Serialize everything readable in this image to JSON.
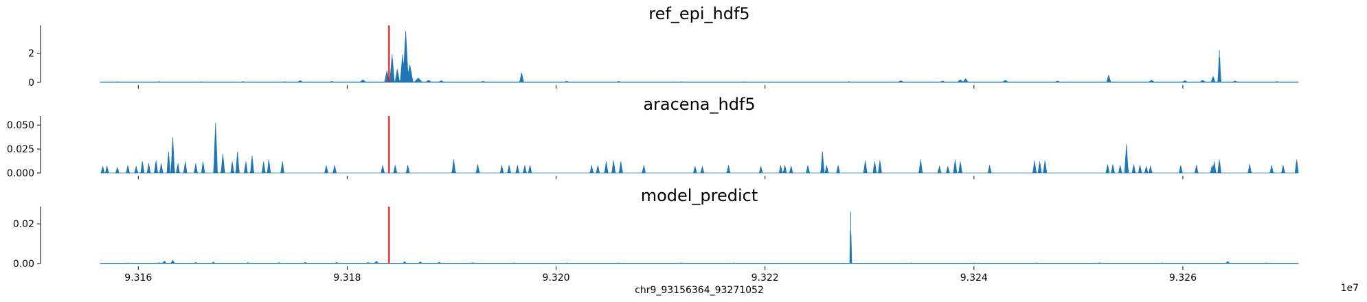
{
  "colors": {
    "fill": "#1f77b4",
    "marker": "#ff0000"
  },
  "chart_data": {
    "type": "area",
    "xlabel": "chr9_93156364_93271052",
    "x_offset_label": "1e7",
    "xlim": [
      93156364,
      93271052
    ],
    "x_ticks": [
      93160000,
      93180000,
      93200000,
      93220000,
      93240000,
      93260000
    ],
    "x_tick_labels": [
      "9.316",
      "9.318",
      "9.320",
      "9.322",
      "9.324",
      "9.326"
    ],
    "marker_x": 93184000,
    "tracks": [
      {
        "title": "ref_epi_hdf5",
        "ylim": [
          0,
          3.8
        ],
        "y_ticks": [
          0,
          2
        ],
        "y_tick_labels": [
          "0",
          "2"
        ],
        "baseline": 0.03,
        "peaks": [
          [
            93158000,
            0.05,
            300
          ],
          [
            93162000,
            0.06,
            300
          ],
          [
            93166000,
            0.05,
            300
          ],
          [
            93170000,
            0.06,
            300
          ],
          [
            93174000,
            0.05,
            300
          ],
          [
            93175500,
            0.12,
            300
          ],
          [
            93178500,
            0.07,
            300
          ],
          [
            93181500,
            0.18,
            300
          ],
          [
            93183800,
            0.8,
            220
          ],
          [
            93184300,
            1.9,
            220
          ],
          [
            93184800,
            0.9,
            220
          ],
          [
            93185300,
            1.9,
            220
          ],
          [
            93185600,
            3.5,
            260
          ],
          [
            93186000,
            1.2,
            300
          ],
          [
            93186800,
            0.3,
            400
          ],
          [
            93187800,
            0.15,
            300
          ],
          [
            93189000,
            0.12,
            300
          ],
          [
            93193000,
            0.08,
            300
          ],
          [
            93196700,
            0.65,
            200
          ],
          [
            93201000,
            0.08,
            300
          ],
          [
            93206000,
            0.07,
            300
          ],
          [
            93212000,
            0.05,
            300
          ],
          [
            93218000,
            0.05,
            300
          ],
          [
            93228000,
            0.06,
            300
          ],
          [
            93233000,
            0.12,
            300
          ],
          [
            93237000,
            0.1,
            300
          ],
          [
            93238700,
            0.18,
            300
          ],
          [
            93239200,
            0.25,
            250
          ],
          [
            93243000,
            0.15,
            300
          ],
          [
            93248000,
            0.1,
            300
          ],
          [
            93252900,
            0.5,
            200
          ],
          [
            93257000,
            0.15,
            300
          ],
          [
            93260200,
            0.12,
            300
          ],
          [
            93261900,
            0.15,
            300
          ],
          [
            93262900,
            0.4,
            200
          ],
          [
            93263500,
            2.2,
            140
          ],
          [
            93265000,
            0.1,
            300
          ],
          [
            93269000,
            0.06,
            300
          ]
        ]
      },
      {
        "title": "aracena_hdf5",
        "ylim": [
          0,
          0.058
        ],
        "y_ticks": [
          0,
          0.025,
          0.05
        ],
        "y_tick_labels": [
          "0.000",
          "0.025",
          "0.050"
        ],
        "baseline": 0,
        "peaks": [
          [
            93156600,
            0.007,
            150
          ],
          [
            93157000,
            0.007,
            150
          ],
          [
            93158000,
            0.006,
            150
          ],
          [
            93159000,
            0.008,
            150
          ],
          [
            93159800,
            0.007,
            150
          ],
          [
            93160400,
            0.012,
            160
          ],
          [
            93161000,
            0.01,
            150
          ],
          [
            93161700,
            0.013,
            160
          ],
          [
            93162200,
            0.01,
            150
          ],
          [
            93162900,
            0.022,
            160
          ],
          [
            93163300,
            0.037,
            170
          ],
          [
            93163800,
            0.01,
            150
          ],
          [
            93164500,
            0.012,
            150
          ],
          [
            93165500,
            0.01,
            150
          ],
          [
            93166200,
            0.012,
            150
          ],
          [
            93167400,
            0.052,
            180
          ],
          [
            93168100,
            0.02,
            170
          ],
          [
            93169000,
            0.012,
            150
          ],
          [
            93169500,
            0.022,
            160
          ],
          [
            93170300,
            0.012,
            150
          ],
          [
            93170900,
            0.018,
            160
          ],
          [
            93172000,
            0.012,
            150
          ],
          [
            93172500,
            0.014,
            150
          ],
          [
            93173800,
            0.012,
            150
          ],
          [
            93178000,
            0.008,
            150
          ],
          [
            93178800,
            0.008,
            150
          ],
          [
            93183400,
            0.008,
            150
          ],
          [
            93184600,
            0.008,
            150
          ],
          [
            93185800,
            0.008,
            150
          ],
          [
            93190200,
            0.014,
            160
          ],
          [
            93192500,
            0.009,
            150
          ],
          [
            93194800,
            0.008,
            150
          ],
          [
            93195500,
            0.008,
            150
          ],
          [
            93196300,
            0.008,
            150
          ],
          [
            93197000,
            0.008,
            150
          ],
          [
            93197500,
            0.008,
            150
          ],
          [
            93203400,
            0.008,
            150
          ],
          [
            93204000,
            0.008,
            150
          ],
          [
            93204800,
            0.012,
            160
          ],
          [
            93205500,
            0.013,
            160
          ],
          [
            93206200,
            0.012,
            160
          ],
          [
            93208400,
            0.008,
            150
          ],
          [
            93213300,
            0.007,
            150
          ],
          [
            93214000,
            0.007,
            150
          ],
          [
            93216500,
            0.008,
            150
          ],
          [
            93219600,
            0.007,
            150
          ],
          [
            93221500,
            0.008,
            150
          ],
          [
            93221900,
            0.008,
            150
          ],
          [
            93222500,
            0.007,
            150
          ],
          [
            93224100,
            0.008,
            150
          ],
          [
            93225500,
            0.022,
            160
          ],
          [
            93225900,
            0.008,
            150
          ],
          [
            93227000,
            0.008,
            150
          ],
          [
            93229600,
            0.013,
            160
          ],
          [
            93230500,
            0.012,
            160
          ],
          [
            93231000,
            0.013,
            160
          ],
          [
            93234900,
            0.014,
            160
          ],
          [
            93236700,
            0.007,
            150
          ],
          [
            93237500,
            0.007,
            150
          ],
          [
            93238200,
            0.014,
            160
          ],
          [
            93238700,
            0.012,
            160
          ],
          [
            93241500,
            0.008,
            150
          ],
          [
            93245800,
            0.013,
            160
          ],
          [
            93246300,
            0.012,
            160
          ],
          [
            93246800,
            0.013,
            160
          ],
          [
            93252800,
            0.009,
            150
          ],
          [
            93253300,
            0.009,
            150
          ],
          [
            93254000,
            0.008,
            150
          ],
          [
            93254600,
            0.03,
            170
          ],
          [
            93255300,
            0.009,
            150
          ],
          [
            93255900,
            0.008,
            150
          ],
          [
            93256500,
            0.007,
            150
          ],
          [
            93256900,
            0.007,
            150
          ],
          [
            93259800,
            0.008,
            150
          ],
          [
            93261300,
            0.008,
            150
          ],
          [
            93262800,
            0.008,
            150
          ],
          [
            93263000,
            0.012,
            160
          ],
          [
            93263500,
            0.014,
            160
          ],
          [
            93266400,
            0.009,
            150
          ],
          [
            93268500,
            0.008,
            150
          ],
          [
            93269600,
            0.008,
            150
          ],
          [
            93270900,
            0.014,
            160
          ]
        ]
      },
      {
        "title": "model_predict",
        "ylim": [
          0,
          0.028
        ],
        "y_ticks": [
          0,
          0.02
        ],
        "y_tick_labels": [
          "0.00",
          "0.02"
        ],
        "baseline": 0.0002,
        "peaks": [
          [
            93159000,
            0.0004,
            200
          ],
          [
            93162000,
            0.0005,
            200
          ],
          [
            93162500,
            0.0013,
            200
          ],
          [
            93163300,
            0.0016,
            200
          ],
          [
            93165500,
            0.0006,
            200
          ],
          [
            93167200,
            0.0008,
            200
          ],
          [
            93170500,
            0.0005,
            200
          ],
          [
            93173500,
            0.0005,
            200
          ],
          [
            93176000,
            0.0006,
            200
          ],
          [
            93179000,
            0.0006,
            200
          ],
          [
            93182000,
            0.0006,
            200
          ],
          [
            93182800,
            0.0012,
            200
          ],
          [
            93185500,
            0.001,
            200
          ],
          [
            93187000,
            0.0009,
            200
          ],
          [
            93188800,
            0.0007,
            200
          ],
          [
            93192000,
            0.0005,
            200
          ],
          [
            93196000,
            0.0004,
            200
          ],
          [
            93201000,
            0.0004,
            200
          ],
          [
            93206000,
            0.0004,
            200
          ],
          [
            93212000,
            0.0004,
            200
          ],
          [
            93217000,
            0.0004,
            200
          ],
          [
            93228200,
            0.026,
            80
          ],
          [
            93234000,
            0.0004,
            200
          ],
          [
            93240000,
            0.0004,
            200
          ],
          [
            93246000,
            0.0004,
            200
          ],
          [
            93252000,
            0.0004,
            200
          ],
          [
            93258000,
            0.0004,
            200
          ],
          [
            93264300,
            0.0011,
            200
          ],
          [
            93268000,
            0.0004,
            200
          ]
        ]
      }
    ]
  }
}
